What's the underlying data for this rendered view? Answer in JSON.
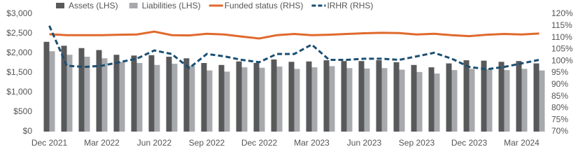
{
  "chart_data": {
    "type": "bar-line",
    "categories": [
      "Dec 2021",
      null,
      null,
      "Mar 2022",
      null,
      null,
      "Jun 2022",
      null,
      null,
      "Sep 2022",
      null,
      null,
      "Dec 2022",
      null,
      null,
      "Mar 2023",
      null,
      null,
      "Jun 2023",
      null,
      null,
      "Sep 2023",
      null,
      null,
      "Dec 2023",
      null,
      null,
      "Mar 2024",
      null
    ],
    "series": [
      {
        "name": "Assets (LHS)",
        "type": "bar",
        "color": "#58595b",
        "values": [
          2290,
          2190,
          2130,
          2080,
          1960,
          1940,
          1950,
          1910,
          1870,
          1750,
          1700,
          1790,
          1750,
          1840,
          1780,
          1790,
          1820,
          1800,
          1800,
          1820,
          1770,
          1700,
          1640,
          1740,
          1820,
          1810,
          1780,
          1800,
          1740
        ]
      },
      {
        "name": "Liabilities (LHS)",
        "type": "bar",
        "color": "#a7a9ac",
        "values": [
          2050,
          1960,
          1910,
          1870,
          1780,
          1750,
          1700,
          1730,
          1680,
          1560,
          1530,
          1640,
          1630,
          1660,
          1600,
          1640,
          1670,
          1620,
          1610,
          1620,
          1580,
          1520,
          1480,
          1570,
          1600,
          1590,
          1570,
          1600,
          1560
        ]
      },
      {
        "name": "Funded status (RHS)",
        "type": "line",
        "axis": "y2",
        "color": "#e0692d",
        "dashed": false,
        "values": [
          111.4,
          111.0,
          111.0,
          111.0,
          111.2,
          111.3,
          112.5,
          111.0,
          110.9,
          111.6,
          111.3,
          110.4,
          109.6,
          111.0,
          111.5,
          111.0,
          111.2,
          111.5,
          111.8,
          112.0,
          111.9,
          111.3,
          111.6,
          111.0,
          110.6,
          111.2,
          111.5,
          111.3,
          111.7
        ]
      },
      {
        "name": "IRHR (RHS)",
        "type": "line",
        "axis": "y2",
        "color": "#1b4f72",
        "dashed": true,
        "values": [
          115,
          98,
          97.5,
          98,
          99.5,
          101,
          104.5,
          103,
          97,
          103,
          102,
          100.5,
          99.5,
          103,
          103,
          107,
          100.5,
          100.5,
          101,
          101,
          100.5,
          102,
          103.5,
          101,
          97.5,
          96.5,
          97.5,
          99,
          100.5
        ]
      }
    ],
    "ylim": [
      0,
      3000
    ],
    "yticks": [
      {
        "value": 0,
        "label": "$0"
      },
      {
        "value": 500,
        "label": "$500"
      },
      {
        "value": 1000,
        "label": "$1,000"
      },
      {
        "value": 1500,
        "label": "$1,500"
      },
      {
        "value": 2000,
        "label": "$2,000"
      },
      {
        "value": 2500,
        "label": "$2,500"
      },
      {
        "value": 3000,
        "label": "$3,000"
      }
    ],
    "y2lim": [
      70,
      120
    ],
    "y2ticks": [
      {
        "value": 70,
        "label": "70%"
      },
      {
        "value": 75,
        "label": "75%"
      },
      {
        "value": 80,
        "label": "80%"
      },
      {
        "value": 85,
        "label": "85%"
      },
      {
        "value": 90,
        "label": "90%"
      },
      {
        "value": 95,
        "label": "95%"
      },
      {
        "value": 100,
        "label": "100%"
      },
      {
        "value": 105,
        "label": "105%"
      },
      {
        "value": 110,
        "label": "110%"
      },
      {
        "value": 115,
        "label": "115%"
      },
      {
        "value": 120,
        "label": "120%"
      }
    ],
    "grid": false
  }
}
